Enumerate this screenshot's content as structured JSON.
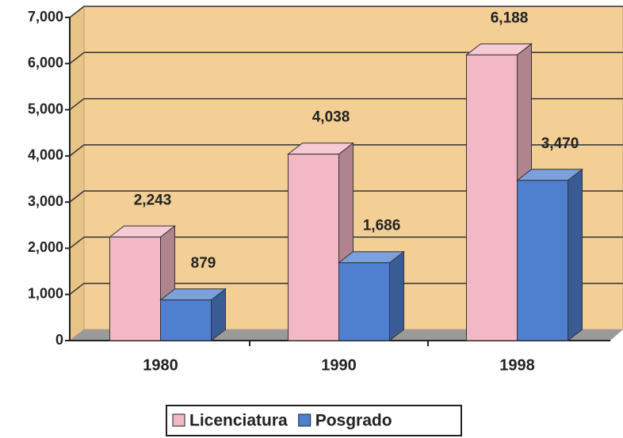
{
  "chart_data": {
    "type": "bar3d",
    "categories": [
      "1980",
      "1990",
      "1998"
    ],
    "series": [
      {
        "name": "Licenciatura",
        "color": "#f3b8c5",
        "values": [
          2243,
          4038,
          6188
        ],
        "value_labels": [
          "2,243",
          "4,038",
          "6,188"
        ]
      },
      {
        "name": "Posgrado",
        "color": "#4f80cf",
        "values": [
          879,
          1686,
          3470
        ],
        "value_labels": [
          "879",
          "1,686",
          "3,470"
        ]
      }
    ],
    "ylim": [
      0,
      7000
    ],
    "yticks": [
      0,
      {
        "value": 1000,
        "label": "1,000"
      },
      {
        "value": 2000,
        "label": "2,000"
      },
      {
        "value": 3000,
        "label": "3,000"
      },
      {
        "value": 4000,
        "label": "4,000"
      },
      {
        "value": 5000,
        "label": "5,000"
      },
      {
        "value": 6000,
        "label": "6,000"
      },
      {
        "value": 7000,
        "label": "7,000"
      }
    ],
    "grid": true,
    "legend": "bottom"
  }
}
